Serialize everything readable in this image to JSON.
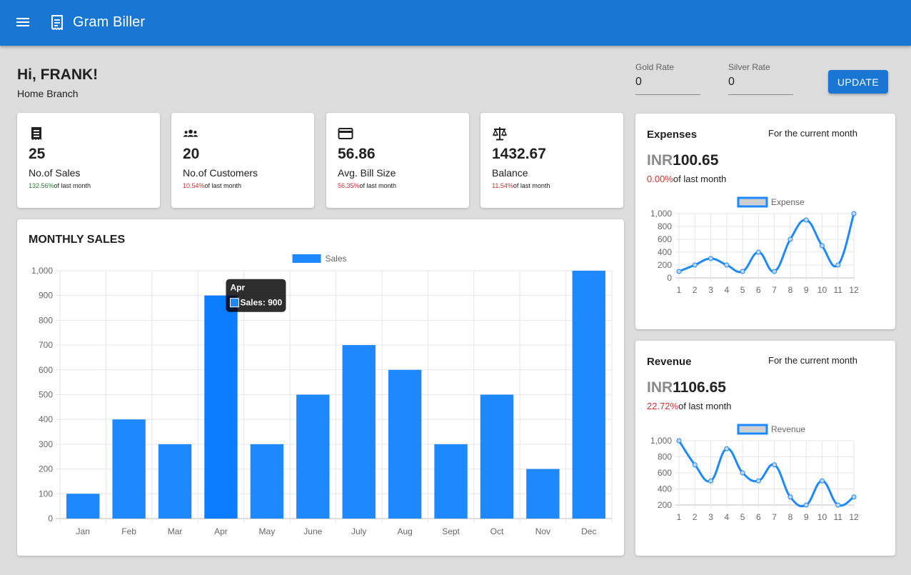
{
  "app": {
    "title": "Gram Biller"
  },
  "header": {
    "greeting": "Hi, FRANK!",
    "branch": "Home Branch"
  },
  "rates": {
    "gold_label": "Gold Rate",
    "gold_value": "0",
    "silver_label": "Silver Rate",
    "silver_value": "0",
    "update_label": "UPDATE"
  },
  "stats": [
    {
      "icon": "receipt-icon",
      "value": "25",
      "label": "No.of Sales",
      "change": "132.56%",
      "change_suffix": "of last month",
      "change_color": "#2e7d32"
    },
    {
      "icon": "people-icon",
      "value": "20",
      "label": "No.of Customers",
      "change": "10.54%",
      "change_suffix": "of last month",
      "change_color": "#d32f2f"
    },
    {
      "icon": "credit-card-icon",
      "value": "56.86",
      "label": "Avg. Bill Size",
      "change": "56.35%",
      "change_suffix": "of last month",
      "change_color": "#d32f2f"
    },
    {
      "icon": "scale-icon",
      "value": "1432.67",
      "label": "Balance",
      "change": "11.54%",
      "change_suffix": "of last month",
      "change_color": "#d32f2f"
    }
  ],
  "monthly_sales": {
    "title": "MONTHLY SALES"
  },
  "expenses": {
    "title": "Expenses",
    "period": "For the current month",
    "currency": "INR",
    "amount": "100.65",
    "change": "0.00%",
    "change_suffix": "of last month"
  },
  "revenue": {
    "title": "Revenue",
    "period": "For the current month",
    "currency": "INR",
    "amount": "1106.65",
    "change": "22.72%",
    "change_suffix": "of last month"
  },
  "colors": {
    "primary": "#1976d2",
    "series": "#1e88ff",
    "negative": "#d32f2f",
    "positive": "#2e7d32"
  },
  "chart_data": [
    {
      "id": "monthly-sales",
      "type": "bar",
      "categories": [
        "Jan",
        "Feb",
        "Mar",
        "Apr",
        "May",
        "June",
        "July",
        "Aug",
        "Sept",
        "Oct",
        "Nov",
        "Dec"
      ],
      "series": [
        {
          "name": "Sales",
          "values": [
            100,
            400,
            300,
            900,
            300,
            500,
            700,
            600,
            300,
            500,
            200,
            1000
          ]
        }
      ],
      "ylim": [
        0,
        1000
      ],
      "yticks": [
        "0",
        "100",
        "200",
        "300",
        "400",
        "500",
        "600",
        "700",
        "800",
        "900",
        "1,000"
      ],
      "grid": true,
      "legend": "top-center",
      "tooltip": {
        "title": "Apr",
        "text": "Sales: 900"
      }
    },
    {
      "id": "expenses",
      "type": "line",
      "x": [
        "1",
        "2",
        "3",
        "4",
        "5",
        "6",
        "7",
        "8",
        "9",
        "10",
        "11",
        "12"
      ],
      "series": [
        {
          "name": "Expense",
          "values": [
            100,
            200,
            300,
            200,
            100,
            400,
            100,
            600,
            900,
            500,
            200,
            1000
          ]
        }
      ],
      "ylim": [
        0,
        1000
      ],
      "yticks": [
        "0",
        "200",
        "400",
        "600",
        "800",
        "1,000"
      ],
      "grid": true,
      "legend": "top-center"
    },
    {
      "id": "revenue",
      "type": "line",
      "x": [
        "1",
        "2",
        "3",
        "4",
        "5",
        "6",
        "7",
        "8",
        "9",
        "10",
        "11",
        "12"
      ],
      "series": [
        {
          "name": "Revenue",
          "values": [
            1000,
            700,
            500,
            900,
            600,
            500,
            700,
            300,
            200,
            500,
            200,
            300
          ]
        }
      ],
      "ylim": [
        200,
        1000
      ],
      "yticks": [
        "200",
        "400",
        "600",
        "800",
        "1,000"
      ],
      "grid": true,
      "legend": "top-center"
    }
  ]
}
